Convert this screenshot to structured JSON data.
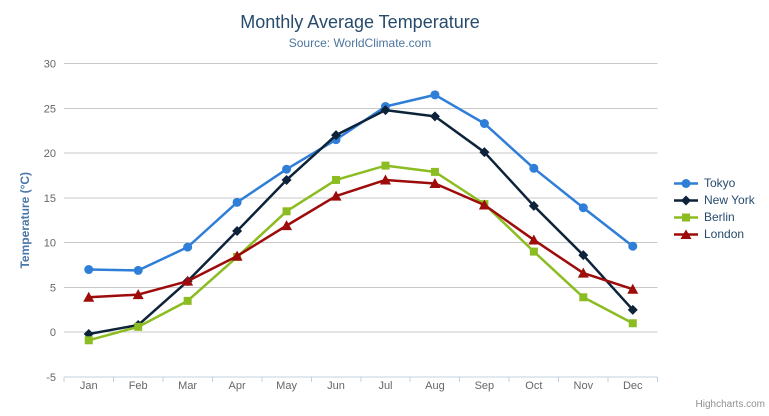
{
  "header": {
    "title": "Monthly Average Temperature",
    "subtitle": "Source: WorldClimate.com"
  },
  "menu": {
    "icon": "hamburger-menu-icon"
  },
  "credit": {
    "label": "Highcharts.com"
  },
  "colors": {
    "background": "#ffffff",
    "title_text": "#274b6d",
    "subtitle_text": "#4d759e",
    "axis_label": "#666666",
    "yaxis_title": "#4a77a8",
    "gridline": "#c8c8c8",
    "axis_line": "#c0d0e0",
    "legend_text": "#274b6d",
    "credit_text": "#909090",
    "menu_icon": "#666666"
  },
  "chart_data": {
    "type": "line",
    "title": "Monthly Average Temperature",
    "subtitle": "Source: WorldClimate.com",
    "categories": [
      "Jan",
      "Feb",
      "Mar",
      "Apr",
      "May",
      "Jun",
      "Jul",
      "Aug",
      "Sep",
      "Oct",
      "Nov",
      "Dec"
    ],
    "xlabel": "",
    "ylabel": "Temperature (°C)",
    "ylim": [
      -5,
      30
    ],
    "yticks": [
      -5,
      0,
      5,
      10,
      15,
      20,
      25,
      30
    ],
    "grid": true,
    "legend_position": "right",
    "series": [
      {
        "name": "Tokyo",
        "color": "#2f7ed8",
        "marker": "circle",
        "values": [
          7.0,
          6.9,
          9.5,
          14.5,
          18.2,
          21.5,
          25.2,
          26.5,
          23.3,
          18.3,
          13.9,
          9.6
        ]
      },
      {
        "name": "New York",
        "color": "#0d233a",
        "marker": "diamond",
        "values": [
          -0.2,
          0.8,
          5.7,
          11.3,
          17.0,
          22.0,
          24.8,
          24.1,
          20.1,
          14.1,
          8.6,
          2.5
        ]
      },
      {
        "name": "Berlin",
        "color": "#8bbc21",
        "marker": "square",
        "values": [
          -0.9,
          0.6,
          3.5,
          8.4,
          13.5,
          17.0,
          18.6,
          17.9,
          14.3,
          9.0,
          3.9,
          1.0
        ]
      },
      {
        "name": "London",
        "color": "#9e0b0b",
        "marker": "triangle",
        "values": [
          3.9,
          4.2,
          5.7,
          8.5,
          11.9,
          15.2,
          17.0,
          16.6,
          14.2,
          10.3,
          6.6,
          4.8
        ]
      }
    ]
  }
}
